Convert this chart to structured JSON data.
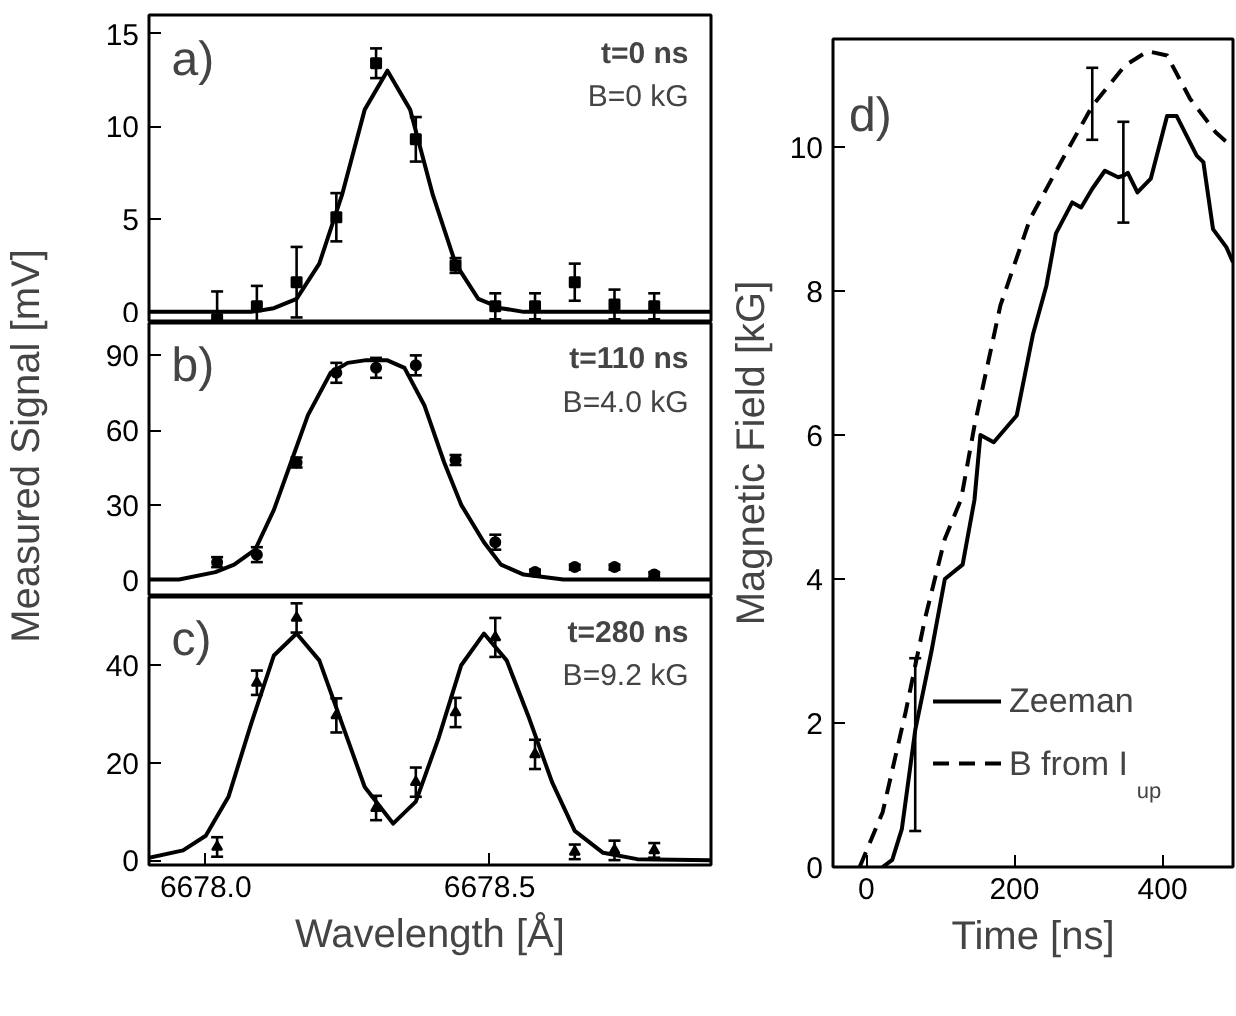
{
  "chart_data": [
    {
      "type": "scatter",
      "annotations": [
        "a)",
        "t=0 ns",
        "B=0 kG"
      ],
      "xlim": [
        6677.9,
        6678.89
      ],
      "ylim": [
        -0.6,
        16.0
      ],
      "yticks": [
        0,
        5,
        10,
        15
      ],
      "tick_labels": "y",
      "series": [
        {
          "type": "scatter",
          "marker": "square",
          "color": "#000000",
          "x": [
            6678.02,
            6678.09,
            6678.16,
            6678.23,
            6678.3,
            6678.37,
            6678.44,
            6678.51,
            6678.58,
            6678.65,
            6678.72,
            6678.79
          ],
          "values": [
            -0.4,
            0.3,
            1.6,
            5.1,
            13.4,
            9.3,
            2.5,
            0.3,
            0.3,
            1.6,
            0.4,
            0.3
          ],
          "errors": [
            [
              -0.6,
              1.1
            ],
            1.1,
            1.9,
            1.3,
            0.8,
            1.2,
            0.4,
            0.7,
            0.7,
            1.0,
            0.8,
            0.7
          ]
        },
        {
          "type": "line",
          "color": "#000000",
          "x": [
            6677.9,
            6678.04,
            6678.08,
            6678.12,
            6678.16,
            6678.2,
            6678.24,
            6678.28,
            6678.32,
            6678.36,
            6678.4,
            6678.44,
            6678.48,
            6678.52,
            6678.56,
            6678.6,
            6678.89
          ],
          "values": [
            0,
            0,
            0,
            0.2,
            0.7,
            2.6,
            6.3,
            10.9,
            13.0,
            10.9,
            6.3,
            2.6,
            0.7,
            0.2,
            0,
            0,
            0
          ]
        }
      ]
    },
    {
      "type": "scatter",
      "annotations": [
        "b)",
        "t=110 ns",
        "B=4.0 kG"
      ],
      "ylabel": "Measured Signal [mV]",
      "xlim": [
        6677.9,
        6678.89
      ],
      "ylim": [
        -7,
        103
      ],
      "yticks": [
        0,
        30,
        60,
        90
      ],
      "tick_labels": "y",
      "series": [
        {
          "type": "scatter",
          "marker": "circle",
          "color": "#000000",
          "x": [
            6678.02,
            6678.09,
            6678.16,
            6678.23,
            6678.3,
            6678.37,
            6678.44,
            6678.51,
            6678.58,
            6678.65,
            6678.72,
            6678.79
          ],
          "values": [
            7,
            10,
            47,
            83,
            85,
            86,
            48,
            15,
            3,
            5,
            5,
            2
          ],
          "errors": [
            2,
            3,
            2,
            4,
            4,
            4,
            2,
            3,
            1,
            1,
            1,
            1
          ]
        },
        {
          "type": "line",
          "color": "#000000",
          "x": [
            6677.9,
            6677.953,
            6678.017,
            6678.05,
            6678.087,
            6678.12,
            6678.15,
            6678.18,
            6678.22,
            6678.25,
            6678.28,
            6678.32,
            6678.35,
            6678.385,
            6678.42,
            6678.45,
            6678.49,
            6678.52,
            6678.56,
            6678.63,
            6678.89
          ],
          "values": [
            0,
            0,
            3,
            6,
            12,
            28,
            47,
            66,
            83,
            87,
            88,
            88,
            85,
            70,
            47,
            30,
            15,
            6,
            2,
            0,
            0
          ]
        }
      ]
    },
    {
      "type": "scatter",
      "annotations": [
        "c)",
        "t=280 ns",
        "B=9.2 kG"
      ],
      "xlabel": "Wavelength [Å]",
      "xlim": [
        6677.9,
        6678.89
      ],
      "xticks": [
        {
          "value": 6678.0,
          "label": "6678.0"
        },
        {
          "value": 6678.5,
          "label": "6678.5"
        }
      ],
      "ylim": [
        -1,
        54
      ],
      "yticks": [
        0,
        20,
        40
      ],
      "series": [
        {
          "type": "scatter",
          "marker": "triangle",
          "color": "#000000",
          "x": [
            6678.02,
            6678.09,
            6678.16,
            6678.23,
            6678.3,
            6678.37,
            6678.44,
            6678.51,
            6678.58,
            6678.65,
            6678.72,
            6678.79
          ],
          "values": [
            2.7,
            36.4,
            49.7,
            29.7,
            10.7,
            16,
            30.3,
            45.7,
            21.7,
            1.7,
            2,
            2
          ],
          "errors": [
            2,
            2.5,
            3,
            3.5,
            2.5,
            3,
            3,
            4,
            3,
            1.5,
            2,
            1.5
          ]
        },
        {
          "type": "line",
          "color": "#000000",
          "x": [
            6677.9,
            6677.96,
            6678.0,
            6678.04,
            6678.08,
            6678.12,
            6678.16,
            6678.2,
            6678.24,
            6678.28,
            6678.33,
            6678.37,
            6678.41,
            6678.45,
            6678.49,
            6678.53,
            6678.57,
            6678.61,
            6678.65,
            6678.7,
            6678.76,
            6678.89
          ],
          "values": [
            0.5,
            2,
            5,
            13,
            28,
            42,
            46.5,
            41,
            28,
            15,
            7.5,
            12,
            25,
            40,
            46.5,
            41,
            29,
            16,
            6,
            1.5,
            0.2,
            0
          ]
        }
      ]
    },
    {
      "type": "line",
      "annotations": [
        "d)"
      ],
      "xlabel": "Time [ns]",
      "ylabel": "Magnetic Field [kG]",
      "xlim": [
        -45,
        495
      ],
      "xticks": [
        0,
        200,
        400
      ],
      "ylim": [
        0,
        11.5
      ],
      "yticks": [
        0,
        2,
        4,
        6,
        8,
        10
      ],
      "legend": "bottom right",
      "series": [
        {
          "name": "Zeeman",
          "color": "#000000",
          "line_style": "solid",
          "x": [
            22,
            35,
            48,
            66,
            88,
            106,
            130,
            146,
            154,
            172,
            203,
            225,
            243,
            256,
            278,
            290,
            305,
            322,
            340,
            347,
            353,
            366,
            384,
            406,
            419,
            446,
            455,
            468,
            486,
            495
          ],
          "values": [
            0,
            0.1,
            0.53,
            1.9,
            3.0,
            4.0,
            4.2,
            5.1,
            6.0,
            5.9,
            6.27,
            7.4,
            8.07,
            8.8,
            9.23,
            9.16,
            9.42,
            9.67,
            9.58,
            9.6,
            9.64,
            9.37,
            9.56,
            10.43,
            10.43,
            9.88,
            9.79,
            8.86,
            8.61,
            8.4
          ],
          "errors": [
            null,
            null,
            null,
            [
              0.5,
              2.9
            ],
            null,
            null,
            null,
            null,
            null,
            null,
            null,
            null,
            null,
            null,
            null,
            null,
            null,
            null,
            null,
            [
              8.95,
              10.35
            ],
            null,
            null,
            null,
            null,
            null,
            null,
            null,
            null,
            null,
            null
          ]
        },
        {
          "name": "B from I$_{up}$",
          "color": "#000000",
          "line_style": "dashed",
          "x": [
            -9,
            22,
            53,
            79,
            106,
            128,
            146,
            181,
            221,
            260,
            305,
            349,
            380,
            406,
            437,
            472,
            494
          ],
          "values": [
            0,
            0.76,
            2.15,
            3.44,
            4.56,
            5.11,
            6.13,
            7.8,
            9.0,
            9.74,
            10.57,
            11.13,
            11.33,
            11.27,
            10.67,
            10.2,
            10.0
          ],
          "errors": [
            null,
            null,
            null,
            null,
            null,
            null,
            null,
            null,
            null,
            null,
            [
              10.1,
              11.1
            ],
            null,
            null,
            null,
            null,
            null,
            null
          ]
        }
      ]
    }
  ]
}
